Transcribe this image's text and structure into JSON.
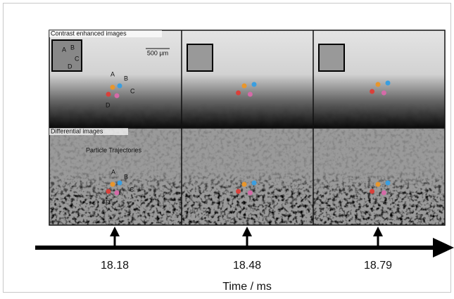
{
  "panels": {
    "top_label": "Contrast enhanced images",
    "bottom_label": "Differential images",
    "scale_bar": "500 µm",
    "trajectory_label": "Particle Trajectories",
    "particles": [
      "A",
      "B",
      "C",
      "D"
    ]
  },
  "timeline": {
    "ticks": [
      "18.18",
      "18.48",
      "18.79"
    ],
    "axis_label": "Time / ms"
  }
}
